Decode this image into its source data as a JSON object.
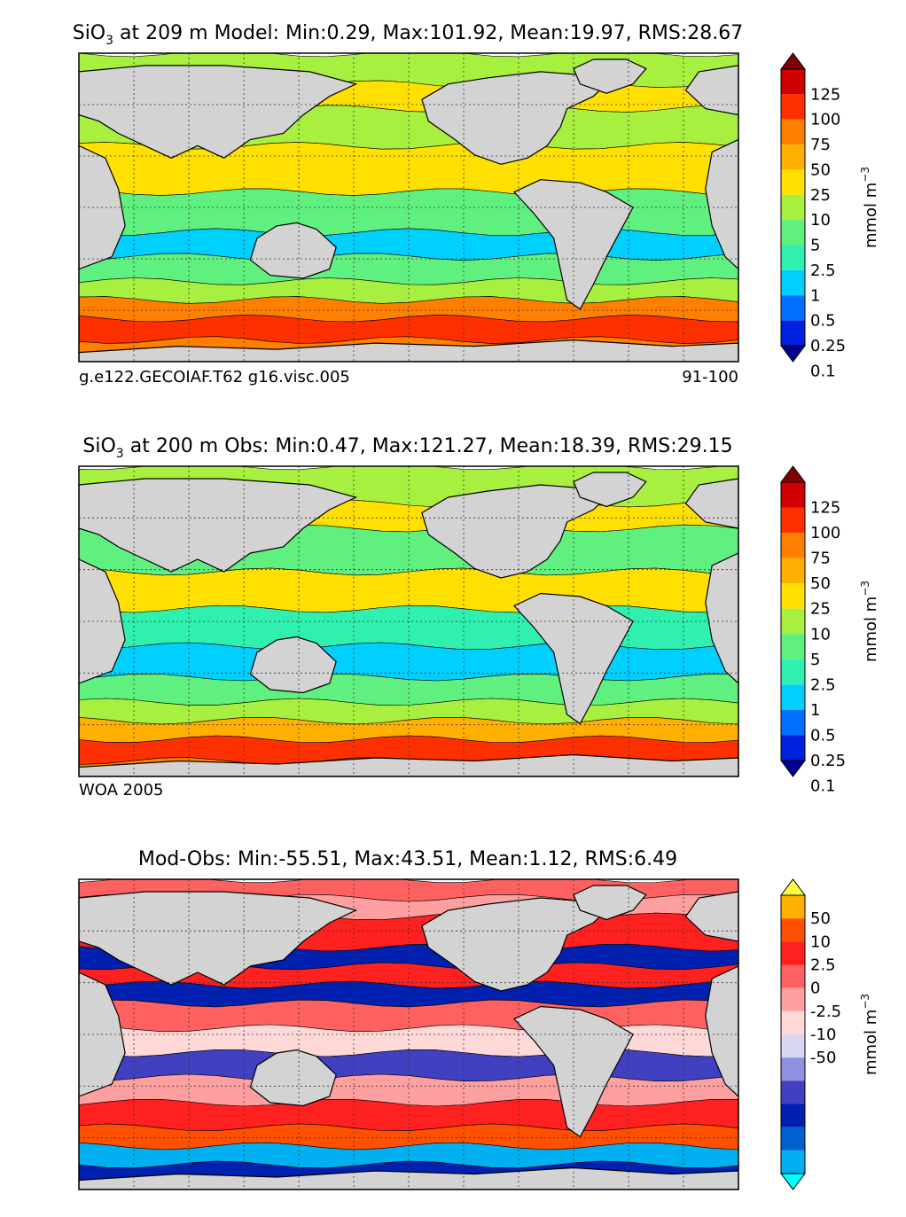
{
  "chart_data": [
    {
      "type": "heatmap",
      "title_variable": "SiO",
      "title_subscript": "3",
      "title_rest": " at 209 m Model: Min:0.29, Max:101.92, Mean:19.97, RMS:28.67",
      "stats": {
        "min": 0.29,
        "max": 101.92,
        "mean": 19.97,
        "rms": 28.67
      },
      "caption_left": "g.e122.GECOIAF.T62 g16.visc.005",
      "caption_right": "91-100",
      "colorbar_label": "mmol m",
      "colorbar_label_exp": "−3",
      "colorbar_ticks": [
        "125",
        "100",
        "75",
        "50",
        "25",
        "10",
        "5",
        "2.5",
        "1",
        "0.5",
        "0.25",
        "0.1"
      ],
      "colorbar_colors": [
        "#800000",
        "#d00000",
        "#ff3000",
        "#ff8000",
        "#ffb000",
        "#ffe000",
        "#a8f040",
        "#60f080",
        "#30f0b0",
        "#00d0ff",
        "#0070ff",
        "#0020e0",
        "#000090"
      ]
    },
    {
      "type": "heatmap",
      "title_variable": "SiO",
      "title_subscript": "3",
      "title_rest": " at 200 m Obs: Min:0.47, Max:121.27, Mean:18.39, RMS:29.15",
      "stats": {
        "min": 0.47,
        "max": 121.27,
        "mean": 18.39,
        "rms": 29.15
      },
      "caption_left": "WOA 2005",
      "caption_right": "",
      "colorbar_label": "mmol m",
      "colorbar_label_exp": "−3",
      "colorbar_ticks": [
        "125",
        "100",
        "75",
        "50",
        "25",
        "10",
        "5",
        "2.5",
        "1",
        "0.5",
        "0.25",
        "0.1"
      ],
      "colorbar_colors": [
        "#800000",
        "#d00000",
        "#ff3000",
        "#ff8000",
        "#ffb000",
        "#ffe000",
        "#a8f040",
        "#60f080",
        "#30f0b0",
        "#00d0ff",
        "#0070ff",
        "#0020e0",
        "#000090"
      ]
    },
    {
      "type": "heatmap",
      "title_variable": "",
      "title_subscript": "",
      "title_rest": "Mod-Obs: Min:-55.51, Max:43.51, Mean:1.12, RMS:6.49",
      "stats": {
        "min": -55.51,
        "max": 43.51,
        "mean": 1.12,
        "rms": 6.49
      },
      "caption_left": "",
      "caption_right": "",
      "colorbar_label": "mmol m",
      "colorbar_label_exp": "−3",
      "colorbar_ticks": [
        "50",
        "10",
        "2.5",
        "0",
        "-2.5",
        "-10",
        "-50"
      ],
      "colorbar_colors": [
        "#ffff40",
        "#ffb000",
        "#ff5000",
        "#ff2020",
        "#ff6060",
        "#ffa0a0",
        "#ffd8d8",
        "#d8d8f0",
        "#9090e0",
        "#4040c0",
        "#0020b0",
        "#0060d0",
        "#00b0f0",
        "#00ffff"
      ]
    }
  ]
}
